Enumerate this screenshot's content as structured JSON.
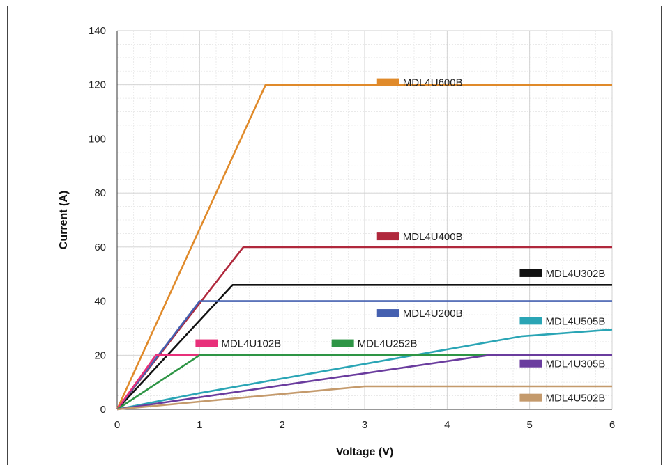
{
  "chart_data": {
    "type": "line",
    "title": "",
    "xlabel": "Voltage (V)",
    "ylabel": "Current (A)",
    "xlim": [
      0,
      6
    ],
    "ylim": [
      0,
      140
    ],
    "xticks": [
      0,
      1,
      2,
      3,
      4,
      5,
      6
    ],
    "yticks": [
      0,
      20,
      40,
      60,
      80,
      100,
      120,
      140
    ],
    "grid": true,
    "legend": "inline labels",
    "series": [
      {
        "name": "MDL4U600B",
        "color": "#E08A2A",
        "x": [
          0,
          1.8,
          6
        ],
        "y": [
          0,
          120,
          120
        ],
        "label_at": [
          3.15,
          120.8
        ]
      },
      {
        "name": "MDL4U400B",
        "color": "#B0283C",
        "x": [
          0,
          1.53,
          6
        ],
        "y": [
          0,
          60,
          60
        ],
        "label_at": [
          3.15,
          63.8
        ]
      },
      {
        "name": "MDL4U302B",
        "color": "#111111",
        "x": [
          0,
          1.4,
          6
        ],
        "y": [
          0,
          46,
          46
        ],
        "label_at": [
          4.88,
          50.2
        ]
      },
      {
        "name": "MDL4U200B",
        "color": "#4560B0",
        "x": [
          0,
          1.0,
          6
        ],
        "y": [
          0,
          40,
          40
        ],
        "label_at": [
          3.15,
          35.5
        ]
      },
      {
        "name": "MDL4U505B",
        "color": "#2AA5B5",
        "x": [
          0,
          1.0,
          4.9,
          6
        ],
        "y": [
          0,
          6,
          27,
          29.5
        ],
        "label_at": [
          4.88,
          32.6
        ]
      },
      {
        "name": "MDL4U102B",
        "color": "#E8307A",
        "x": [
          0,
          0.47,
          6
        ],
        "y": [
          0,
          20,
          20
        ],
        "label_at": [
          0.95,
          24.3
        ]
      },
      {
        "name": "MDL4U252B",
        "color": "#2E9545",
        "x": [
          0,
          1.0,
          6
        ],
        "y": [
          0,
          20,
          20
        ],
        "label_at": [
          2.6,
          24.3
        ]
      },
      {
        "name": "MDL4U305B",
        "color": "#6A3C9E",
        "x": [
          0,
          4.5,
          6
        ],
        "y": [
          0,
          20,
          20
        ],
        "label_at": [
          4.88,
          16.8
        ]
      },
      {
        "name": "MDL4U502B",
        "color": "#C49A6C",
        "x": [
          0,
          3.0,
          6
        ],
        "y": [
          0,
          8.5,
          8.5
        ],
        "label_at": [
          4.88,
          4.2
        ]
      }
    ]
  }
}
